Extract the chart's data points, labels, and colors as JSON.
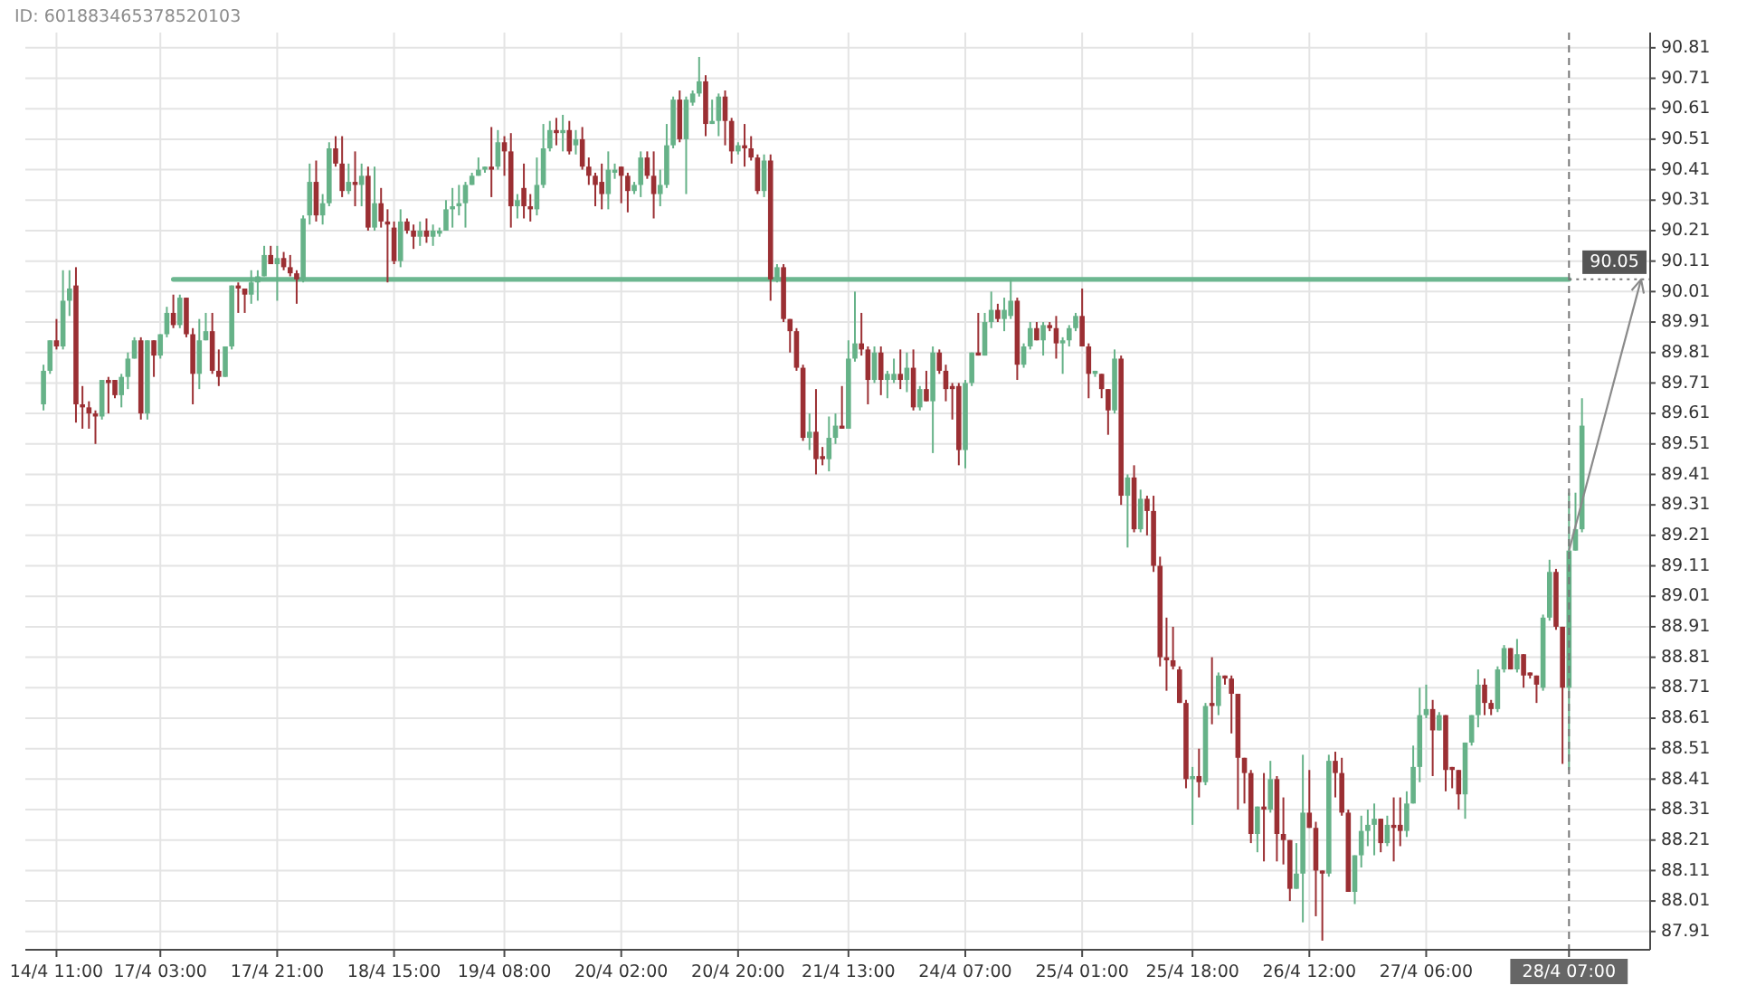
{
  "chart_data": {
    "type": "candlestick",
    "annotations": [
      "ID: 601883465378520103"
    ],
    "categories": [
      null,
      null,
      "14/4 11:00",
      null,
      null,
      null,
      null,
      null,
      null,
      null,
      null,
      null,
      null,
      null,
      null,
      null,
      null,
      null,
      "17/4 03:00",
      null,
      null,
      null,
      null,
      null,
      null,
      null,
      null,
      null,
      null,
      null,
      null,
      null,
      null,
      null,
      null,
      null,
      "17/4 21:00",
      null,
      null,
      null,
      null,
      null,
      null,
      null,
      null,
      null,
      null,
      null,
      null,
      null,
      null,
      null,
      null,
      null,
      "18/4 15:00",
      null,
      null,
      null,
      null,
      null,
      null,
      null,
      null,
      null,
      null,
      null,
      null,
      null,
      null,
      null,
      null,
      "19/4 08:00",
      null,
      null,
      null,
      null,
      null,
      null,
      null,
      null,
      null,
      null,
      null,
      null,
      null,
      null,
      null,
      null,
      null,
      "20/4 02:00",
      null,
      null,
      null,
      null,
      null,
      null,
      null,
      null,
      null,
      null,
      null,
      null,
      null,
      null,
      null,
      null,
      null,
      "20/4 20:00",
      null,
      null,
      null,
      null,
      null,
      null,
      null,
      null,
      null,
      null,
      null,
      null,
      null,
      null,
      null,
      null,
      "21/4 13:00",
      null,
      null,
      null,
      null,
      null,
      null,
      null,
      null,
      null,
      null,
      null,
      null,
      null,
      null,
      null,
      null,
      null,
      "24/4 07:00",
      null,
      null,
      null,
      null,
      null,
      null,
      null,
      null,
      null,
      null,
      null,
      null,
      null,
      null,
      null,
      null,
      null,
      "25/4 01:00",
      null,
      null,
      null,
      null,
      null,
      null,
      null,
      null,
      null,
      null,
      null,
      null,
      null,
      null,
      null,
      null,
      "25/4 18:00",
      null,
      null,
      null,
      null,
      null,
      null,
      null,
      null,
      null,
      null,
      null,
      null,
      null,
      null,
      null,
      null,
      null,
      "26/4 12:00",
      null,
      null,
      null,
      null,
      null,
      null,
      null,
      null,
      null,
      null,
      null,
      null,
      null,
      null,
      null,
      null,
      null,
      "27/4 06:00",
      null,
      null,
      null,
      null,
      null,
      null,
      null,
      null,
      null,
      null,
      null,
      null,
      null,
      null,
      null,
      null,
      null,
      null,
      null,
      null,
      null,
      "28/4 07:00",
      null,
      null
    ],
    "ohlc": [
      [
        89.64,
        89.77,
        89.62,
        89.75
      ],
      [
        89.75,
        89.85,
        89.74,
        89.85
      ],
      [
        89.85,
        89.92,
        89.82,
        89.83
      ],
      [
        89.83,
        90.08,
        89.82,
        89.98
      ],
      [
        89.98,
        90.08,
        89.93,
        90.02
      ],
      [
        90.03,
        90.09,
        89.58,
        89.64
      ],
      [
        89.64,
        89.7,
        89.56,
        89.63
      ],
      [
        89.63,
        89.65,
        89.56,
        89.61
      ],
      [
        89.61,
        89.62,
        89.51,
        89.6
      ],
      [
        89.6,
        89.72,
        89.59,
        89.72
      ],
      [
        89.72,
        89.73,
        89.61,
        89.71
      ],
      [
        89.72,
        89.72,
        89.66,
        89.67
      ],
      [
        89.67,
        89.74,
        89.63,
        89.73
      ],
      [
        89.73,
        89.81,
        89.69,
        89.79
      ],
      [
        89.79,
        89.86,
        89.79,
        89.85
      ],
      [
        89.85,
        89.86,
        89.59,
        89.61
      ],
      [
        89.61,
        89.85,
        89.59,
        89.85
      ],
      [
        89.85,
        89.85,
        89.73,
        89.8
      ],
      [
        89.8,
        89.87,
        89.79,
        89.87
      ],
      [
        89.87,
        89.96,
        89.86,
        89.94
      ],
      [
        89.94,
        90.0,
        89.89,
        89.9
      ],
      [
        89.9,
        90.0,
        89.89,
        89.99
      ],
      [
        89.99,
        89.99,
        89.86,
        89.87
      ],
      [
        89.87,
        89.89,
        89.64,
        89.74
      ],
      [
        89.74,
        89.92,
        89.69,
        89.85
      ],
      [
        89.85,
        89.94,
        89.85,
        89.88
      ],
      [
        89.88,
        89.94,
        89.74,
        89.75
      ],
      [
        89.75,
        89.82,
        89.7,
        89.73
      ],
      [
        89.73,
        89.83,
        89.73,
        89.83
      ],
      [
        89.83,
        90.03,
        89.82,
        90.03
      ],
      [
        90.03,
        90.04,
        89.94,
        90.02
      ],
      [
        90.02,
        90.02,
        89.94,
        90.0
      ],
      [
        90.0,
        90.08,
        89.97,
        90.04
      ],
      [
        90.04,
        90.08,
        89.98,
        90.06
      ],
      [
        90.06,
        90.16,
        90.06,
        90.13
      ],
      [
        90.13,
        90.16,
        90.1,
        90.1
      ],
      [
        90.1,
        90.16,
        89.98,
        90.12
      ],
      [
        90.12,
        90.14,
        90.08,
        90.09
      ],
      [
        90.09,
        90.13,
        90.06,
        90.07
      ],
      [
        90.07,
        90.08,
        89.97,
        90.05
      ],
      [
        90.05,
        90.26,
        90.04,
        90.25
      ],
      [
        90.26,
        90.43,
        90.23,
        90.37
      ],
      [
        90.37,
        90.44,
        90.24,
        90.26
      ],
      [
        90.26,
        90.33,
        90.23,
        90.3
      ],
      [
        90.3,
        90.5,
        90.29,
        90.48
      ],
      [
        90.48,
        90.52,
        90.42,
        90.43
      ],
      [
        90.43,
        90.52,
        90.32,
        90.34
      ],
      [
        90.34,
        90.43,
        90.33,
        90.37
      ],
      [
        90.37,
        90.47,
        90.29,
        90.36
      ],
      [
        90.36,
        90.43,
        90.29,
        90.39
      ],
      [
        90.39,
        90.42,
        90.21,
        90.22
      ],
      [
        90.22,
        90.42,
        90.21,
        90.3
      ],
      [
        90.3,
        90.35,
        90.22,
        90.24
      ],
      [
        90.24,
        90.28,
        90.04,
        90.23
      ],
      [
        90.22,
        90.24,
        90.1,
        90.11
      ],
      [
        90.11,
        90.28,
        90.09,
        90.24
      ],
      [
        90.24,
        90.25,
        90.2,
        90.21
      ],
      [
        90.21,
        90.23,
        90.15,
        90.19
      ],
      [
        90.19,
        90.24,
        90.16,
        90.21
      ],
      [
        90.21,
        90.25,
        90.17,
        90.19
      ],
      [
        90.19,
        90.23,
        90.16,
        90.21
      ],
      [
        90.2,
        90.22,
        90.19,
        90.21
      ],
      [
        90.21,
        90.31,
        90.21,
        90.28
      ],
      [
        90.28,
        90.35,
        90.22,
        90.29
      ],
      [
        90.29,
        90.36,
        90.26,
        90.3
      ],
      [
        90.3,
        90.37,
        90.22,
        90.36
      ],
      [
        90.36,
        90.4,
        90.36,
        90.39
      ],
      [
        90.39,
        90.45,
        90.39,
        90.41
      ],
      [
        90.41,
        90.42,
        90.4,
        90.42
      ],
      [
        90.42,
        90.55,
        90.32,
        90.41
      ],
      [
        90.42,
        90.54,
        90.41,
        90.5
      ],
      [
        90.5,
        90.52,
        90.39,
        90.47
      ],
      [
        90.47,
        90.53,
        90.22,
        90.29
      ],
      [
        90.29,
        90.33,
        90.25,
        90.31
      ],
      [
        90.35,
        90.43,
        90.25,
        90.29
      ],
      [
        90.29,
        90.33,
        90.24,
        90.28
      ],
      [
        90.28,
        90.45,
        90.26,
        90.36
      ],
      [
        90.36,
        90.56,
        90.35,
        90.48
      ],
      [
        90.48,
        90.57,
        90.47,
        90.54
      ],
      [
        90.54,
        90.58,
        90.49,
        90.53
      ],
      [
        90.53,
        90.59,
        90.47,
        90.54
      ],
      [
        90.54,
        90.57,
        90.46,
        90.47
      ],
      [
        90.49,
        90.54,
        90.46,
        90.51
      ],
      [
        90.51,
        90.55,
        90.41,
        90.42
      ],
      [
        90.42,
        90.45,
        90.36,
        90.39
      ],
      [
        90.39,
        90.4,
        90.29,
        90.36
      ],
      [
        90.37,
        90.43,
        90.28,
        90.33
      ],
      [
        90.33,
        90.47,
        90.28,
        90.41
      ],
      [
        90.4,
        90.43,
        90.38,
        90.41
      ],
      [
        90.42,
        90.42,
        90.3,
        90.39
      ],
      [
        90.39,
        90.4,
        90.27,
        90.34
      ],
      [
        90.34,
        90.37,
        90.33,
        90.36
      ],
      [
        90.36,
        90.47,
        90.32,
        90.45
      ],
      [
        90.45,
        90.47,
        90.38,
        90.39
      ],
      [
        90.39,
        90.47,
        90.25,
        90.33
      ],
      [
        90.33,
        90.41,
        90.29,
        90.36
      ],
      [
        90.36,
        90.56,
        90.35,
        90.49
      ],
      [
        90.49,
        90.65,
        90.48,
        90.64
      ],
      [
        90.64,
        90.67,
        90.5,
        90.51
      ],
      [
        90.51,
        90.65,
        90.33,
        90.64
      ],
      [
        90.63,
        90.67,
        90.62,
        90.66
      ],
      [
        90.66,
        90.78,
        90.65,
        90.7
      ],
      [
        90.7,
        90.72,
        90.52,
        90.56
      ],
      [
        90.56,
        90.64,
        90.56,
        90.57
      ],
      [
        90.57,
        90.66,
        90.52,
        90.65
      ],
      [
        90.65,
        90.67,
        90.49,
        90.57
      ],
      [
        90.57,
        90.58,
        90.43,
        90.47
      ],
      [
        90.47,
        90.5,
        90.46,
        90.49
      ],
      [
        90.49,
        90.56,
        90.42,
        90.48
      ],
      [
        90.48,
        90.52,
        90.44,
        90.45
      ],
      [
        90.45,
        90.46,
        90.33,
        90.34
      ],
      [
        90.34,
        90.46,
        90.32,
        90.44
      ],
      [
        90.44,
        90.46,
        89.98,
        90.05
      ],
      [
        90.05,
        90.1,
        90.04,
        90.09
      ],
      [
        90.09,
        90.1,
        89.91,
        89.92
      ],
      [
        89.92,
        89.92,
        89.81,
        89.88
      ],
      [
        89.88,
        89.89,
        89.75,
        89.76
      ],
      [
        89.76,
        89.77,
        89.52,
        89.53
      ],
      [
        89.53,
        89.61,
        89.49,
        89.55
      ],
      [
        89.55,
        89.69,
        89.41,
        89.46
      ],
      [
        89.47,
        89.5,
        89.44,
        89.46
      ],
      [
        89.46,
        89.6,
        89.42,
        89.53
      ],
      [
        89.53,
        89.61,
        89.51,
        89.57
      ],
      [
        89.57,
        89.7,
        89.56,
        89.56
      ],
      [
        89.56,
        89.85,
        89.56,
        89.79
      ],
      [
        89.79,
        90.01,
        89.78,
        89.84
      ],
      [
        89.84,
        89.94,
        89.8,
        89.82
      ],
      [
        89.82,
        89.83,
        89.64,
        89.72
      ],
      [
        89.72,
        89.83,
        89.71,
        89.81
      ],
      [
        89.81,
        89.83,
        89.67,
        89.72
      ],
      [
        89.72,
        89.75,
        89.66,
        89.74
      ],
      [
        89.72,
        89.79,
        89.71,
        89.74
      ],
      [
        89.74,
        89.82,
        89.69,
        89.72
      ],
      [
        89.72,
        89.81,
        89.68,
        89.76
      ],
      [
        89.76,
        89.82,
        89.62,
        89.63
      ],
      [
        89.63,
        89.7,
        89.62,
        89.69
      ],
      [
        89.69,
        89.75,
        89.65,
        89.65
      ],
      [
        89.65,
        89.83,
        89.48,
        89.81
      ],
      [
        89.81,
        89.82,
        89.74,
        89.75
      ],
      [
        89.75,
        89.77,
        89.65,
        89.69
      ],
      [
        89.7,
        89.71,
        89.59,
        89.69
      ],
      [
        89.7,
        89.71,
        89.44,
        89.49
      ],
      [
        89.49,
        89.72,
        89.43,
        89.71
      ],
      [
        89.71,
        89.81,
        89.7,
        89.81
      ],
      [
        89.81,
        89.94,
        89.8,
        89.8
      ],
      [
        89.8,
        89.94,
        89.8,
        89.91
      ],
      [
        89.91,
        90.01,
        89.89,
        89.95
      ],
      [
        89.95,
        89.97,
        89.91,
        89.92
      ],
      [
        89.92,
        89.99,
        89.88,
        89.95
      ],
      [
        89.93,
        90.05,
        89.92,
        89.98
      ],
      [
        89.98,
        89.99,
        89.72,
        89.77
      ],
      [
        89.77,
        89.84,
        89.76,
        89.83
      ],
      [
        89.83,
        89.91,
        89.82,
        89.89
      ],
      [
        89.89,
        89.91,
        89.85,
        89.85
      ],
      [
        89.85,
        89.91,
        89.8,
        89.9
      ],
      [
        89.9,
        89.91,
        89.88,
        89.89
      ],
      [
        89.89,
        89.93,
        89.79,
        89.84
      ],
      [
        89.84,
        89.86,
        89.74,
        89.85
      ],
      [
        89.85,
        89.9,
        89.83,
        89.89
      ],
      [
        89.89,
        89.94,
        89.88,
        89.93
      ],
      [
        89.93,
        90.02,
        89.83,
        89.83
      ],
      [
        89.83,
        89.84,
        89.66,
        89.74
      ],
      [
        89.74,
        89.75,
        89.73,
        89.75
      ],
      [
        89.74,
        89.74,
        89.66,
        89.69
      ],
      [
        89.69,
        89.69,
        89.54,
        89.62
      ],
      [
        89.62,
        89.82,
        89.61,
        89.79
      ],
      [
        89.79,
        89.8,
        89.31,
        89.34
      ],
      [
        89.34,
        89.41,
        89.17,
        89.4
      ],
      [
        89.4,
        89.44,
        89.22,
        89.23
      ],
      [
        89.23,
        89.36,
        89.22,
        89.33
      ],
      [
        89.33,
        89.34,
        89.21,
        89.29
      ],
      [
        89.29,
        89.34,
        89.09,
        89.11
      ],
      [
        89.11,
        89.14,
        88.78,
        88.81
      ],
      [
        88.81,
        88.94,
        88.7,
        88.8
      ],
      [
        88.8,
        88.91,
        88.77,
        88.78
      ],
      [
        88.77,
        88.78,
        88.66,
        88.66
      ],
      [
        88.66,
        88.67,
        88.38,
        88.41
      ],
      [
        88.41,
        88.45,
        88.26,
        88.42
      ],
      [
        88.42,
        88.51,
        88.35,
        88.4
      ],
      [
        88.4,
        88.66,
        88.39,
        88.65
      ],
      [
        88.66,
        88.81,
        88.59,
        88.65
      ],
      [
        88.65,
        88.76,
        88.62,
        88.75
      ],
      [
        88.75,
        88.75,
        88.72,
        88.74
      ],
      [
        88.74,
        88.75,
        88.56,
        88.69
      ],
      [
        88.69,
        88.69,
        88.31,
        88.48
      ],
      [
        88.48,
        88.48,
        88.33,
        88.43
      ],
      [
        88.43,
        88.44,
        88.2,
        88.23
      ],
      [
        88.23,
        88.32,
        88.17,
        88.32
      ],
      [
        88.32,
        88.43,
        88.14,
        88.31
      ],
      [
        88.31,
        88.47,
        88.3,
        88.41
      ],
      [
        88.41,
        88.42,
        88.14,
        88.23
      ],
      [
        88.23,
        88.35,
        88.13,
        88.21
      ],
      [
        88.21,
        88.21,
        88.01,
        88.05
      ],
      [
        88.05,
        88.2,
        88.05,
        88.1
      ],
      [
        88.1,
        88.49,
        87.94,
        88.3
      ],
      [
        88.3,
        88.44,
        88.25,
        88.25
      ],
      [
        88.25,
        88.27,
        87.96,
        88.11
      ],
      [
        88.11,
        88.11,
        87.88,
        88.1
      ],
      [
        88.1,
        88.49,
        88.09,
        88.47
      ],
      [
        88.47,
        88.5,
        88.35,
        88.43
      ],
      [
        88.43,
        88.48,
        88.29,
        88.3
      ],
      [
        88.3,
        88.31,
        88.04,
        88.04
      ],
      [
        88.04,
        88.16,
        88.0,
        88.16
      ],
      [
        88.16,
        88.29,
        88.12,
        88.24
      ],
      [
        88.24,
        88.31,
        88.19,
        88.26
      ],
      [
        88.26,
        88.33,
        88.16,
        88.28
      ],
      [
        88.28,
        88.28,
        88.17,
        88.2
      ],
      [
        88.2,
        88.29,
        88.19,
        88.26
      ],
      [
        88.26,
        88.35,
        88.14,
        88.25
      ],
      [
        88.26,
        88.35,
        88.19,
        88.24
      ],
      [
        88.24,
        88.37,
        88.22,
        88.33
      ],
      [
        88.33,
        88.52,
        88.33,
        88.45
      ],
      [
        88.45,
        88.71,
        88.4,
        88.62
      ],
      [
        88.62,
        88.72,
        88.61,
        88.64
      ],
      [
        88.64,
        88.67,
        88.42,
        88.57
      ],
      [
        88.57,
        88.63,
        88.57,
        88.62
      ],
      [
        88.62,
        88.62,
        88.37,
        88.44
      ],
      [
        88.45,
        88.45,
        88.38,
        88.44
      ],
      [
        88.44,
        88.44,
        88.31,
        88.36
      ],
      [
        88.36,
        88.53,
        88.28,
        88.53
      ],
      [
        88.53,
        88.62,
        88.52,
        88.62
      ],
      [
        88.62,
        88.77,
        88.58,
        88.72
      ],
      [
        88.72,
        88.74,
        88.62,
        88.66
      ],
      [
        88.66,
        88.67,
        88.62,
        88.64
      ],
      [
        88.64,
        88.78,
        88.63,
        88.77
      ],
      [
        88.77,
        88.85,
        88.76,
        88.84
      ],
      [
        88.84,
        88.84,
        88.77,
        88.77
      ],
      [
        88.77,
        88.87,
        88.76,
        88.82
      ],
      [
        88.82,
        88.82,
        88.71,
        88.75
      ],
      [
        88.76,
        88.76,
        88.74,
        88.75
      ],
      [
        88.75,
        88.75,
        88.66,
        88.72
      ],
      [
        88.71,
        88.95,
        88.7,
        88.94
      ],
      [
        88.94,
        89.13,
        88.93,
        89.09
      ],
      [
        89.09,
        89.1,
        88.9,
        88.91
      ],
      [
        88.91,
        88.91,
        88.46,
        88.71
      ],
      [
        88.71,
        89.35,
        88.44,
        89.16
      ],
      [
        89.16,
        89.35,
        89.16,
        89.23
      ],
      [
        89.23,
        89.66,
        89.22,
        89.57
      ]
    ],
    "series": [
      {
        "type": "line",
        "color": "#6cb790",
        "values": [
          null,
          null,
          null,
          null,
          null,
          null,
          null,
          null,
          null,
          null,
          null,
          null,
          null,
          null,
          null,
          null,
          null,
          null,
          null,
          null,
          90.05,
          90.05,
          90.05,
          90.05,
          90.05,
          90.05,
          90.05,
          90.05,
          90.05,
          90.05,
          90.05,
          90.05,
          90.05,
          90.05,
          90.05,
          90.05,
          90.05,
          90.05,
          90.05,
          90.05,
          90.05,
          90.05,
          90.05,
          90.05,
          90.05,
          90.05,
          90.05,
          90.05,
          90.05,
          90.05,
          90.05,
          90.05,
          90.05,
          90.05,
          90.05,
          90.05,
          90.05,
          90.05,
          90.05,
          90.05,
          90.05,
          90.05,
          90.05,
          90.05,
          90.05,
          90.05,
          90.05,
          90.05,
          90.05,
          90.05,
          90.05,
          90.05,
          90.05,
          90.05,
          90.05,
          90.05,
          90.05,
          90.05,
          90.05,
          90.05,
          90.05,
          90.05,
          90.05,
          90.05,
          90.05,
          90.05,
          90.05,
          90.05,
          90.05,
          90.05,
          90.05,
          90.05,
          90.05,
          90.05,
          90.05,
          90.05,
          90.05,
          90.05,
          90.05,
          90.05,
          90.05,
          90.05,
          90.05,
          90.05,
          90.05,
          90.05,
          90.05,
          90.05,
          90.05,
          90.05,
          90.05,
          90.05,
          90.05,
          90.05,
          90.05,
          90.05,
          90.05,
          90.05,
          90.05,
          90.05,
          90.05,
          90.05,
          90.05,
          90.05,
          90.05,
          90.05,
          90.05,
          90.05,
          90.05,
          90.05,
          90.05,
          90.05,
          90.05,
          90.05,
          90.05,
          90.05,
          90.05,
          90.05,
          90.05,
          90.05,
          90.05,
          90.05,
          90.05,
          90.05,
          90.05,
          90.05,
          90.05,
          90.05,
          90.05,
          90.05,
          90.05,
          90.05,
          90.05,
          90.05,
          90.05,
          90.05,
          90.05,
          90.05,
          90.05,
          90.05,
          90.05,
          90.05,
          90.05,
          90.05,
          90.05,
          90.05,
          90.05,
          90.05,
          90.05,
          90.05,
          90.05,
          90.05,
          90.05,
          90.05,
          90.05,
          90.05,
          90.05,
          90.05,
          90.05,
          90.05,
          90.05,
          90.05,
          90.05,
          90.05,
          90.05,
          90.05,
          90.05,
          90.05,
          90.05,
          90.05,
          90.05,
          90.05,
          90.05,
          90.05,
          90.05,
          90.05,
          90.05,
          90.05,
          90.05,
          90.05,
          90.05,
          90.05,
          90.05,
          90.05,
          90.05,
          90.05,
          90.05,
          90.05,
          90.05,
          90.05,
          90.05,
          90.05,
          90.05,
          90.05,
          90.05,
          90.05,
          90.05,
          90.05,
          90.05,
          90.05,
          90.05,
          90.05,
          90.05,
          90.05,
          90.05,
          90.05,
          90.05,
          90.05,
          90.05,
          90.05,
          90.05,
          90.05,
          90.05,
          90.05,
          90.05,
          90.05,
          null,
          null
        ]
      }
    ],
    "ylim": [
      87.85,
      90.86
    ],
    "yticks": [
      87.91,
      88.01,
      88.11,
      88.21,
      88.31,
      88.41,
      88.51,
      88.61,
      88.71,
      88.81,
      88.91,
      89.01,
      89.11,
      89.21,
      89.31,
      89.41,
      89.51,
      89.61,
      89.71,
      89.81,
      89.91,
      90.01,
      90.11,
      90.21,
      90.31,
      90.41,
      90.51,
      90.61,
      90.71,
      90.81
    ],
    "grid": true,
    "ref_lines": [
      {
        "axis": "x",
        "value": "28/4 07:00",
        "color": "#777777",
        "line_style": "dashed"
      },
      {
        "axis": "y",
        "value": 90.05,
        "label": "90.05",
        "color": "#777777",
        "line_style": "dotted"
      }
    ]
  }
}
